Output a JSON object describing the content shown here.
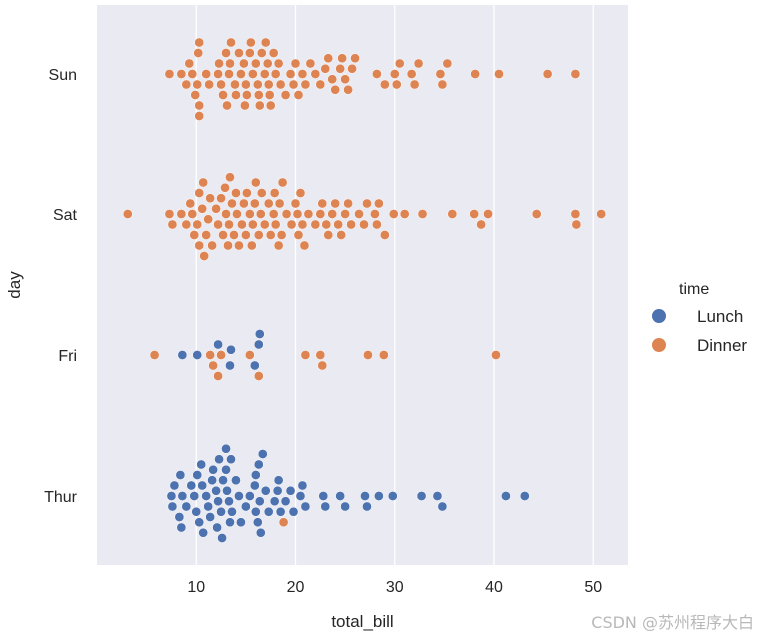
{
  "watermark": "CSDN @苏州程序大白",
  "chart_data": {
    "type": "scatter",
    "subtype": "swarm",
    "title": "",
    "xlabel": "total_bill",
    "ylabel": "day",
    "xlim": [
      0,
      53.5
    ],
    "xticks": [
      10,
      20,
      30,
      40,
      50
    ],
    "categories": [
      "Sun",
      "Sat",
      "Fri",
      "Thur"
    ],
    "grid": true,
    "background": "#EAEAF2",
    "legend": {
      "title": "time",
      "placement": "right",
      "entries": [
        {
          "name": "Lunch",
          "color": "#4C72B0"
        },
        {
          "name": "Dinner",
          "color": "#DD8452"
        }
      ]
    },
    "series": [
      {
        "name": "Lunch",
        "color": "#4C72B0",
        "points": [
          {
            "day": "Fri",
            "values": [
              8.6,
              10.1,
              12.2,
              13.4,
              13.5,
              15.9,
              16.3,
              16.4
            ]
          },
          {
            "day": "Thur",
            "values": [
              7.5,
              7.6,
              7.8,
              8.3,
              8.4,
              8.5,
              8.6,
              9.0,
              9.5,
              9.8,
              10.0,
              10.1,
              10.3,
              10.5,
              10.6,
              10.7,
              11.0,
              11.2,
              11.4,
              11.6,
              11.7,
              12.0,
              12.1,
              12.2,
              12.3,
              12.5,
              12.6,
              12.7,
              13.0,
              13.0,
              13.1,
              13.3,
              13.4,
              13.5,
              13.6,
              14.0,
              14.3,
              14.5,
              15.0,
              15.4,
              15.9,
              16.0,
              16.0,
              16.2,
              16.3,
              16.4,
              16.5,
              16.7,
              17.0,
              17.3,
              17.9,
              18.2,
              18.3,
              18.5,
              19.0,
              19.5,
              19.8,
              20.5,
              20.7,
              21.0,
              22.8,
              23.0,
              24.5,
              25.0,
              27.0,
              27.2,
              28.4,
              29.8,
              32.7,
              34.3,
              34.8,
              41.2,
              43.1
            ]
          }
        ]
      },
      {
        "name": "Dinner",
        "color": "#DD8452",
        "points": [
          {
            "day": "Sun",
            "values": [
              7.3,
              8.5,
              9.0,
              9.3,
              9.6,
              9.9,
              10.1,
              10.2,
              10.3,
              10.3,
              10.3,
              11.0,
              11.3,
              12.2,
              12.3,
              12.5,
              12.7,
              13.0,
              13.1,
              13.3,
              13.4,
              13.5,
              13.9,
              14.0,
              14.3,
              14.5,
              14.8,
              14.9,
              15.0,
              15.1,
              15.4,
              15.5,
              15.7,
              16.0,
              16.2,
              16.3,
              16.4,
              16.6,
              16.9,
              17.0,
              17.2,
              17.3,
              17.4,
              17.5,
              17.8,
              18.0,
              18.3,
              18.5,
              19.0,
              19.5,
              19.8,
              20.0,
              20.3,
              20.7,
              21.0,
              21.5,
              22.0,
              22.5,
              23.0,
              23.3,
              23.7,
              24.0,
              24.5,
              24.7,
              25.0,
              25.3,
              25.7,
              26.0,
              28.2,
              29.0,
              30.0,
              30.2,
              30.5,
              31.7,
              32.0,
              32.4,
              34.6,
              34.8,
              35.3,
              38.1,
              40.5,
              45.4,
              48.2
            ]
          },
          {
            "day": "Sat",
            "values": [
              3.1,
              7.3,
              7.6,
              8.5,
              9.0,
              9.4,
              9.6,
              9.8,
              10.1,
              10.3,
              10.3,
              10.6,
              10.7,
              10.8,
              11.0,
              11.2,
              11.4,
              11.6,
              12.0,
              12.2,
              12.5,
              12.7,
              12.9,
              13.0,
              13.2,
              13.3,
              13.4,
              13.6,
              13.8,
              14.0,
              14.1,
              14.3,
              14.6,
              14.8,
              15.0,
              15.1,
              15.4,
              15.6,
              15.7,
              15.9,
              16.0,
              16.3,
              16.5,
              16.6,
              16.9,
              17.3,
              17.5,
              17.8,
              17.9,
              18.0,
              18.3,
              18.4,
              18.6,
              18.7,
              19.1,
              19.6,
              20.0,
              20.2,
              20.3,
              20.5,
              20.7,
              20.9,
              21.3,
              22.0,
              22.5,
              22.7,
              23.1,
              23.3,
              23.7,
              24.0,
              24.3,
              24.6,
              25.0,
              25.3,
              25.6,
              26.4,
              26.9,
              27.2,
              28.0,
              28.2,
              28.4,
              29.0,
              29.9,
              31.0,
              32.8,
              35.8,
              38.0,
              38.7,
              39.4,
              44.3,
              48.2,
              48.3,
              50.8
            ]
          },
          {
            "day": "Fri",
            "values": [
              5.8,
              11.4,
              11.7,
              12.2,
              12.5,
              15.4,
              16.3,
              21.0,
              22.5,
              22.7,
              27.3,
              28.9,
              40.2
            ]
          },
          {
            "day": "Thur",
            "values": [
              18.8
            ]
          }
        ]
      }
    ]
  }
}
